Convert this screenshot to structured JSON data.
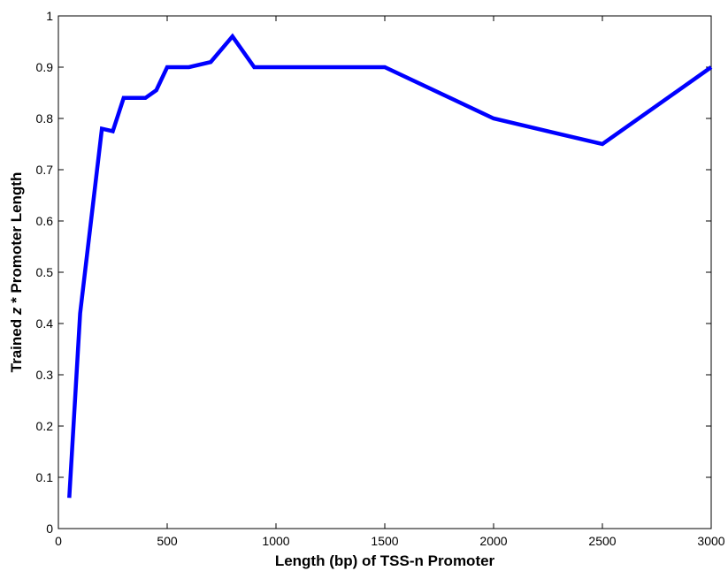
{
  "chart_data": {
    "type": "line",
    "title": "",
    "xlabel": "Length (bp) of TSS-n Promoter",
    "ylabel_parts": [
      "Trained ",
      "z",
      " * Promoter Length"
    ],
    "xlim": [
      0,
      3000
    ],
    "ylim": [
      0,
      1
    ],
    "xticks": [
      0,
      500,
      1000,
      1500,
      2000,
      2500,
      3000
    ],
    "xtick_labels": [
      "0",
      "500",
      "1000",
      "1500",
      "2000",
      "2500",
      "3000"
    ],
    "yticks": [
      0,
      0.1,
      0.2,
      0.3,
      0.4,
      0.5,
      0.6,
      0.7,
      0.8,
      0.9,
      1
    ],
    "ytick_labels": [
      "0",
      "0.1",
      "0.2",
      "0.3",
      "0.4",
      "0.5",
      "0.6",
      "0.7",
      "0.8",
      "0.9",
      "1"
    ],
    "grid": false,
    "series": [
      {
        "color": "#0000ff",
        "x": [
          50,
          100,
          200,
          250,
          300,
          400,
          450,
          500,
          600,
          700,
          800,
          900,
          1500,
          2000,
          2500,
          3000
        ],
        "y": [
          0.06,
          0.42,
          0.78,
          0.775,
          0.84,
          0.84,
          0.855,
          0.9,
          0.9,
          0.91,
          0.96,
          0.9,
          0.9,
          0.8,
          0.75,
          0.9
        ]
      }
    ]
  }
}
